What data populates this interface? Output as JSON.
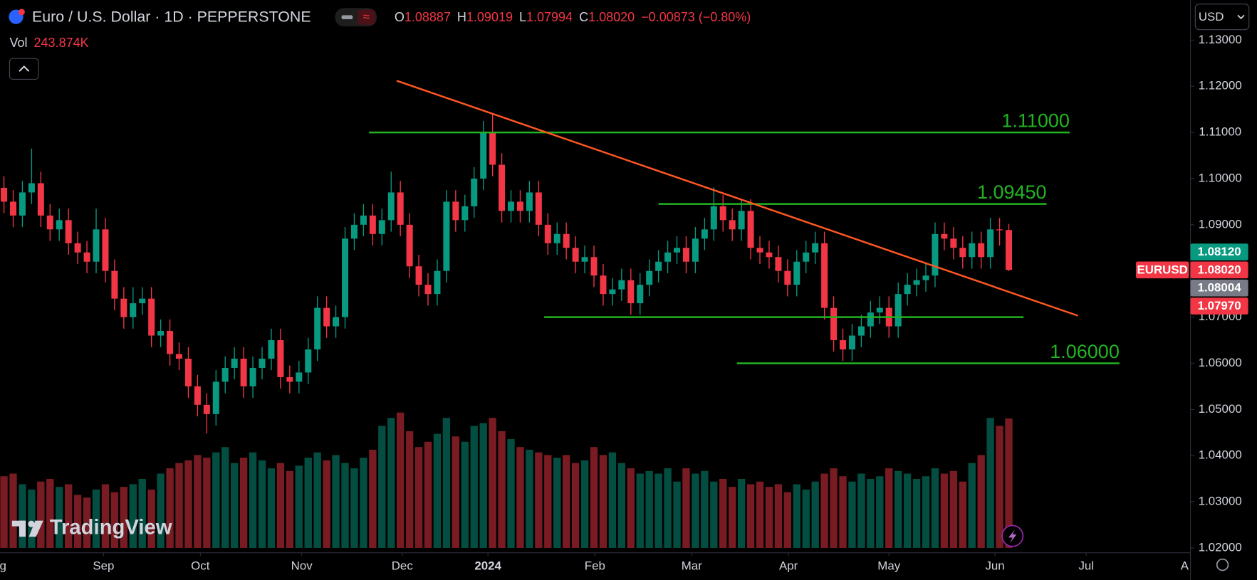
{
  "header": {
    "symbol": "Euro / U.S. Dollar · 1D · PEPPERSTONE",
    "ohlc": [
      {
        "label": "O",
        "value": "1.08887"
      },
      {
        "label": "H",
        "value": "1.09019"
      },
      {
        "label": "L",
        "value": "1.07994"
      },
      {
        "label": "C",
        "value": "1.08020"
      }
    ],
    "change": "−0.00873 (−0.80%)",
    "vol_label": "Vol",
    "vol_value": "243.874K",
    "currency": "USD",
    "logo": "TradingView"
  },
  "price_tags": [
    {
      "text": "1.08120",
      "color": "#089981"
    },
    {
      "name": "EURUSD",
      "text": "1.08020",
      "color": "#f23645"
    },
    {
      "text": "1.08004",
      "color": "#787b86"
    },
    {
      "text": "1.07970",
      "color": "#f23645"
    }
  ],
  "chart_data": {
    "type": "candlestick",
    "open": [
      1.098,
      1.095,
      1.092,
      1.097,
      1.099,
      1.092,
      1.089,
      1.091,
      1.086,
      1.084,
      1.082,
      1.089,
      1.08,
      1.074,
      1.07,
      1.073,
      1.074,
      1.066,
      1.067,
      1.062,
      1.061,
      1.055,
      1.051,
      1.049,
      1.056,
      1.059,
      1.061,
      1.055,
      1.059,
      1.061,
      1.065,
      1.057,
      1.056,
      1.058,
      1.063,
      1.072,
      1.068,
      1.07,
      1.087,
      1.09,
      1.092,
      1.088,
      1.091,
      1.097,
      1.09,
      1.081,
      1.077,
      1.075,
      1.08,
      1.095,
      1.091,
      1.094,
      1.1,
      1.11,
      1.103,
      1.093,
      1.095,
      1.093,
      1.097,
      1.09,
      1.086,
      1.088,
      1.085,
      1.082,
      1.083,
      1.079,
      1.075,
      1.076,
      1.078,
      1.073,
      1.077,
      1.08,
      1.082,
      1.084,
      1.085,
      1.082,
      1.087,
      1.089,
      1.094,
      1.091,
      1.089,
      1.093,
      1.085,
      1.084,
      1.083,
      1.08,
      1.077,
      1.082,
      1.084,
      1.086,
      1.072,
      1.065,
      1.063,
      1.066,
      1.068,
      1.071,
      1.072,
      1.068,
      1.075,
      1.077,
      1.078,
      1.079,
      1.088,
      1.087,
      1.085,
      1.083,
      1.086,
      1.083,
      1.089,
      1.08887
    ],
    "high": [
      1.1005,
      1.0975,
      1.0995,
      1.1065,
      1.1015,
      1.0945,
      1.0935,
      1.0935,
      1.0885,
      1.0865,
      1.0935,
      1.0915,
      1.0825,
      1.0765,
      1.0765,
      1.0765,
      1.0765,
      1.0695,
      1.0695,
      1.0645,
      1.0635,
      1.0575,
      1.0535,
      1.0585,
      1.0615,
      1.0635,
      1.0635,
      1.0615,
      1.0635,
      1.0675,
      1.0675,
      1.0595,
      1.0605,
      1.0655,
      1.0745,
      1.0745,
      1.0725,
      1.0895,
      1.0925,
      1.0945,
      1.0945,
      1.0935,
      1.1015,
      1.0995,
      1.0925,
      1.0835,
      1.0795,
      1.0825,
      1.0975,
      1.0975,
      1.0965,
      1.1025,
      1.1125,
      1.1139,
      1.1055,
      1.0975,
      1.0975,
      1.0995,
      1.0995,
      1.0925,
      1.0905,
      1.0905,
      1.0875,
      1.0855,
      1.0855,
      1.0815,
      1.0785,
      1.0805,
      1.0805,
      1.0795,
      1.0825,
      1.0845,
      1.0865,
      1.0875,
      1.0875,
      1.0895,
      1.0915,
      1.0981,
      1.0965,
      1.0935,
      1.0955,
      1.0955,
      1.0875,
      1.0865,
      1.0855,
      1.0825,
      1.0845,
      1.0865,
      1.0885,
      1.0885,
      1.0745,
      1.0675,
      1.0685,
      1.0705,
      1.0735,
      1.0745,
      1.0745,
      1.0775,
      1.0795,
      1.0805,
      1.0815,
      1.0905,
      1.0905,
      1.0895,
      1.0875,
      1.0885,
      1.0885,
      1.0915,
      1.0915,
      1.09019
    ],
    "low": [
      1.0925,
      1.0895,
      1.0895,
      1.0945,
      1.0895,
      1.0865,
      1.0865,
      1.0835,
      1.0815,
      1.0795,
      1.0795,
      1.0775,
      1.0715,
      1.0675,
      1.0675,
      1.0705,
      1.0635,
      1.0635,
      1.0595,
      1.0585,
      1.0525,
      1.0485,
      1.0448,
      1.0465,
      1.0535,
      1.0565,
      1.0525,
      1.0525,
      1.0565,
      1.0585,
      1.0545,
      1.0535,
      1.0535,
      1.0555,
      1.0605,
      1.0655,
      1.0655,
      1.0675,
      1.0845,
      1.0875,
      1.0855,
      1.0855,
      1.0885,
      1.0875,
      1.0785,
      1.0745,
      1.0725,
      1.0725,
      1.0775,
      1.0885,
      1.0885,
      1.0915,
      1.0975,
      1.1005,
      1.0905,
      1.0905,
      1.0905,
      1.0905,
      1.0875,
      1.0835,
      1.0835,
      1.0825,
      1.0795,
      1.0795,
      1.0765,
      1.0725,
      1.0725,
      1.0735,
      1.0705,
      1.0705,
      1.0745,
      1.0775,
      1.0795,
      1.0815,
      1.0795,
      1.0795,
      1.0845,
      1.0865,
      1.0885,
      1.0865,
      1.0865,
      1.0825,
      1.0815,
      1.0805,
      1.0775,
      1.0745,
      1.0745,
      1.0795,
      1.0815,
      1.0695,
      1.0625,
      1.0605,
      1.0605,
      1.0635,
      1.0655,
      1.0685,
      1.0655,
      1.0655,
      1.0725,
      1.0745,
      1.0755,
      1.0765,
      1.0845,
      1.0825,
      1.0805,
      1.0805,
      1.0805,
      1.0805,
      1.0855,
      1.07994
    ],
    "close": [
      1.095,
      1.092,
      1.097,
      1.099,
      1.092,
      1.089,
      1.091,
      1.086,
      1.084,
      1.082,
      1.089,
      1.08,
      1.074,
      1.07,
      1.073,
      1.074,
      1.066,
      1.067,
      1.062,
      1.061,
      1.055,
      1.051,
      1.049,
      1.056,
      1.059,
      1.061,
      1.055,
      1.059,
      1.061,
      1.065,
      1.057,
      1.056,
      1.058,
      1.063,
      1.072,
      1.068,
      1.07,
      1.087,
      1.09,
      1.092,
      1.088,
      1.091,
      1.097,
      1.09,
      1.081,
      1.077,
      1.075,
      1.08,
      1.095,
      1.091,
      1.094,
      1.1,
      1.11,
      1.103,
      1.093,
      1.095,
      1.093,
      1.097,
      1.09,
      1.086,
      1.088,
      1.085,
      1.082,
      1.083,
      1.079,
      1.075,
      1.076,
      1.078,
      1.073,
      1.077,
      1.08,
      1.082,
      1.084,
      1.085,
      1.082,
      1.087,
      1.089,
      1.094,
      1.091,
      1.089,
      1.093,
      1.085,
      1.084,
      1.083,
      1.08,
      1.077,
      1.082,
      1.084,
      1.086,
      1.072,
      1.065,
      1.063,
      1.066,
      1.068,
      1.071,
      1.072,
      1.068,
      1.075,
      1.077,
      1.078,
      1.079,
      1.088,
      1.087,
      1.085,
      1.083,
      1.086,
      1.083,
      1.089,
      1.0888,
      1.0802
    ],
    "volume": {
      "values": [
        135000,
        140000,
        120000,
        110000,
        125000,
        130000,
        115000,
        120000,
        100000,
        95000,
        110000,
        120000,
        105000,
        115000,
        120000,
        130000,
        110000,
        140000,
        150000,
        160000,
        165000,
        175000,
        170000,
        180000,
        190000,
        160000,
        170000,
        180000,
        165000,
        150000,
        160000,
        145000,
        155000,
        170000,
        180000,
        165000,
        175000,
        160000,
        150000,
        170000,
        185000,
        230000,
        245000,
        255000,
        220000,
        190000,
        200000,
        215000,
        245000,
        210000,
        200000,
        230000,
        235000,
        245000,
        220000,
        205000,
        190000,
        185000,
        180000,
        175000,
        170000,
        175000,
        160000,
        165000,
        190000,
        175000,
        180000,
        160000,
        150000,
        140000,
        145000,
        140000,
        150000,
        125000,
        150000,
        140000,
        145000,
        125000,
        130000,
        115000,
        130000,
        120000,
        125000,
        115000,
        120000,
        105000,
        120000,
        110000,
        125000,
        140000,
        150000,
        135000,
        125000,
        140000,
        130000,
        135000,
        150000,
        145000,
        140000,
        130000,
        135000,
        150000,
        140000,
        145000,
        125000,
        160000,
        175000,
        245000,
        230000,
        243874
      ]
    },
    "color_up": "#089981",
    "color_down": "#f23645",
    "xlim": [
      -0.43,
      128.53
    ],
    "xticks": [
      {
        "value": -0.9,
        "label": "Aug"
      },
      {
        "value": 10.8,
        "label": "Sep"
      },
      {
        "value": 21.3,
        "label": "Oct"
      },
      {
        "value": 32.3,
        "label": "Nov"
      },
      {
        "value": 43.2,
        "label": "Dec"
      },
      {
        "value": 52.5,
        "label": "2024"
      },
      {
        "value": 64.1,
        "label": "Feb"
      },
      {
        "value": 74.6,
        "label": "Mar"
      },
      {
        "value": 85.1,
        "label": "Apr"
      },
      {
        "value": 96,
        "label": "May"
      },
      {
        "value": 107.5,
        "label": "Jun"
      },
      {
        "value": 117.4,
        "label": "Jul"
      },
      {
        "value": 128.8,
        "label": "Aug"
      }
    ],
    "ylim": [
      1.01896,
      1.13868
    ],
    "yticks": [
      {
        "value": 1.13,
        "label": "1.13000"
      },
      {
        "value": 1.12,
        "label": "1.12000"
      },
      {
        "value": 1.11,
        "label": "1.11000"
      },
      {
        "value": 1.1,
        "label": "1.10000"
      },
      {
        "value": 1.09,
        "label": "1.09000"
      },
      {
        "value": 1.08,
        "label": "1.08000"
      },
      {
        "value": 1.07,
        "label": "1.07000"
      },
      {
        "value": 1.06,
        "label": "1.06000"
      },
      {
        "value": 1.05,
        "label": "1.05000"
      },
      {
        "value": 1.04,
        "label": "1.04000"
      },
      {
        "value": 1.03,
        "label": "1.03000"
      },
      {
        "value": 1.02,
        "label": "1.02000"
      }
    ],
    "levels": [
      {
        "value": 1.11,
        "label": "1.11000",
        "from": 39.6,
        "to": 115.6
      },
      {
        "value": 1.0945,
        "label": "1.09450",
        "from": 71.0,
        "to": 113.1
      },
      {
        "value": 1.07,
        "from": 58.6,
        "to": 110.6
      },
      {
        "value": 1.06,
        "label": "1.06000",
        "from": 79.5,
        "to": 121.0
      }
    ],
    "level_color": "#22b322",
    "trendline": {
      "x": [
        42.6,
        116.5
      ],
      "y": [
        1.1212,
        1.0703
      ],
      "color": "#ff5722"
    }
  }
}
